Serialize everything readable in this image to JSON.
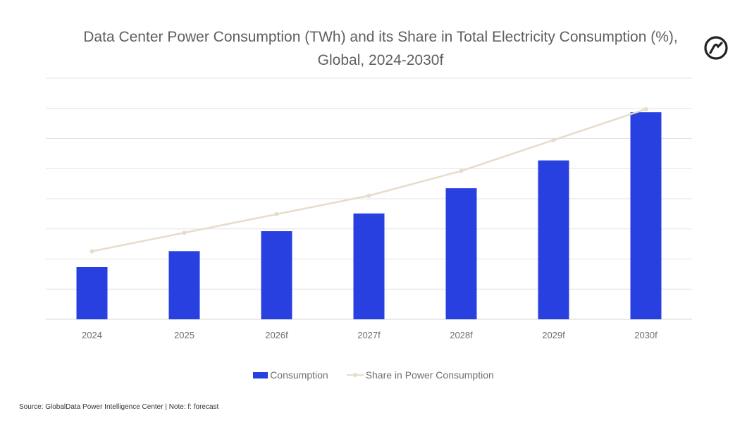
{
  "title": "Data Center Power Consumption (TWh) and its Share in Total Electricity Consumption (%), Global, 2024-2030f",
  "legend": {
    "consumption": "Consumption",
    "share": "Share in Power Consumption"
  },
  "source": "Source: GlobalData Power Intelligence Center | Note: f: forecast",
  "icons": {
    "brand_logo": "globaldata-logo-icon"
  },
  "colors": {
    "bar": "#2840e0",
    "line": "#e6dcc9",
    "grid": "#e3e3e3",
    "tick": "#6e6e6e"
  },
  "chart_data": {
    "type": "bar",
    "title": "Data Center Power Consumption (TWh) and its Share in Total Electricity Consumption (%), Global, 2024-2030f",
    "categories": [
      "2024",
      "2025",
      "2026f",
      "2027f",
      "2028f",
      "2029f",
      "2030f"
    ],
    "series": [
      {
        "name": "Consumption",
        "type": "bar",
        "axis": "left",
        "values": [
          238,
          311,
          402,
          483,
          598,
          725,
          945
        ]
      },
      {
        "name": "Share in Power Consumption",
        "type": "line",
        "axis": "right",
        "values": [
          1.1,
          1.4,
          1.7,
          2.0,
          2.4,
          2.9,
          3.4
        ]
      }
    ],
    "ylim": [
      0,
      1100
    ],
    "y2lim": [
      0,
      3.9
    ],
    "grid": true,
    "axis_labels_visible": false,
    "legend_position": "bottom"
  }
}
